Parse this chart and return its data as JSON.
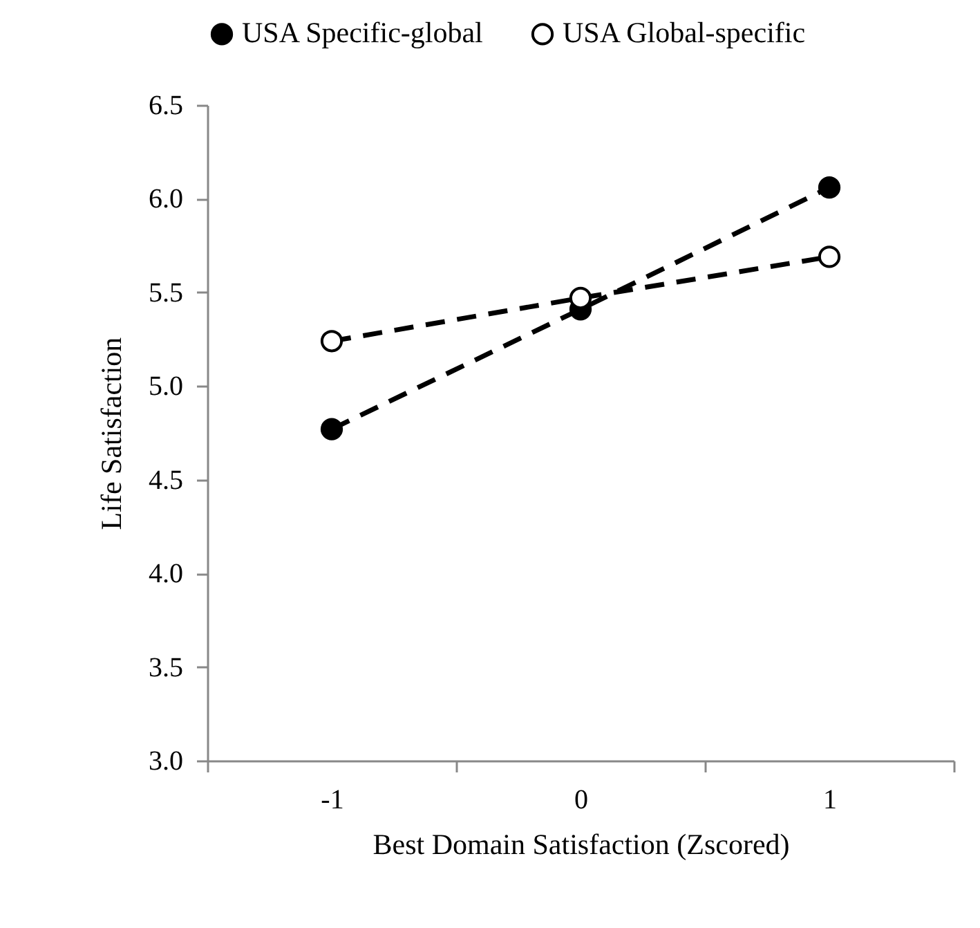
{
  "chart_data": {
    "type": "line",
    "xlabel": "Best Domain Satisfaction (Zscored)",
    "ylabel": "Life Satisfaction",
    "categories": [
      "-1",
      "0",
      "1"
    ],
    "series": [
      {
        "name": "USA Specific-global",
        "color": "#000000",
        "values": [
          4.77,
          5.41,
          6.06
        ]
      },
      {
        "name": "USA Global-specific",
        "color": "#000000",
        "values": [
          5.24,
          5.47,
          5.69
        ]
      }
    ],
    "ylim": [
      3.0,
      6.5
    ],
    "yticks": [
      {
        "value": 3,
        "label": "3.0"
      },
      {
        "value": 3.5,
        "label": "3.5"
      },
      {
        "value": 4,
        "label": "4.0"
      },
      {
        "value": 4.5,
        "label": "4.5"
      },
      {
        "value": 5,
        "label": "5.0"
      },
      {
        "value": 5.5,
        "label": "5.5"
      },
      {
        "value": 6,
        "label": "6.0"
      },
      {
        "value": 6.5,
        "label": "6.5"
      }
    ],
    "grid": false,
    "legend": "top",
    "marker": "circle",
    "line_style": "dashed"
  }
}
